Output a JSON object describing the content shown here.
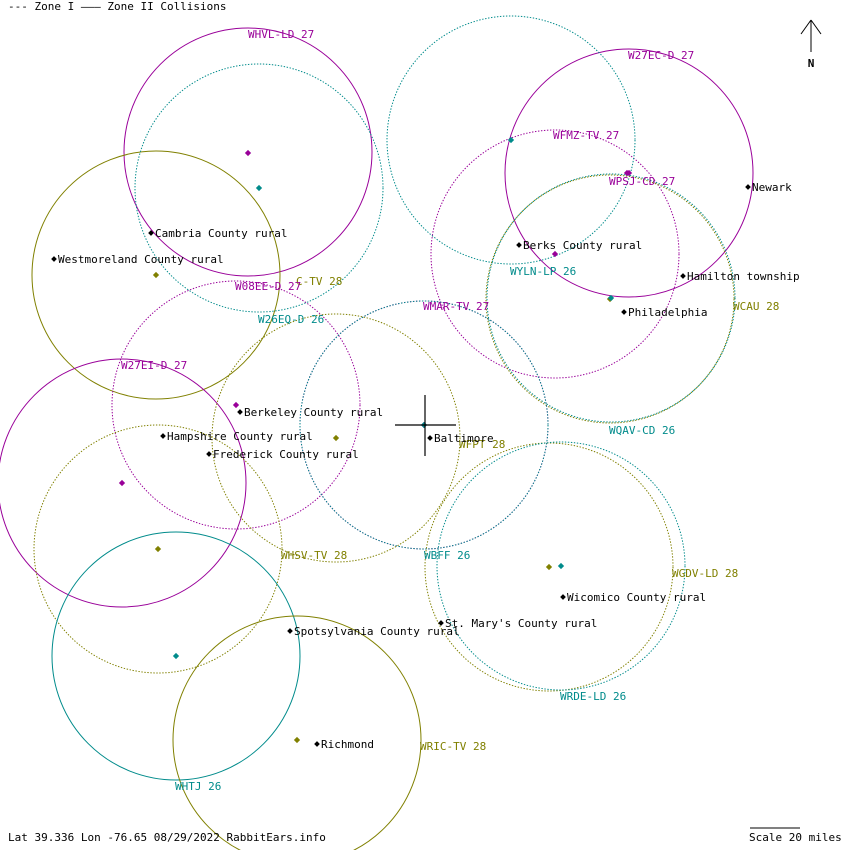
{
  "legend": {
    "text": "--- Zone I  ——— Zone II Collisions"
  },
  "compass": {
    "label": "N"
  },
  "footer": {
    "status": "Lat 39.336 Lon -76.65 08/29/2022 RabbitEars.info",
    "scale": "Scale 20 miles"
  },
  "colors": {
    "purple": "#990099",
    "teal": "#008B8B",
    "olive": "#808000",
    "navy": "#000080",
    "darkgreen": "#006400",
    "black": "#000000"
  },
  "stations": [
    {
      "callsign": "WHVL-LD 27",
      "color": "purple",
      "style": "solid"
    },
    {
      "callsign": "W27EC-D 27",
      "color": "purple",
      "style": "solid"
    },
    {
      "callsign": "WFMZ-TV 27",
      "color": "purple",
      "style": "dotted"
    },
    {
      "callsign": "WPSJ-CD 27",
      "color": "purple",
      "style": "dotted"
    },
    {
      "callsign": "WYLN-LP 26",
      "color": "teal",
      "style": "dotted"
    },
    {
      "callsign": "WCAU 28",
      "color": "olive",
      "style": "dotted"
    },
    {
      "callsign": "C-TV 28",
      "color": "olive",
      "style": "solid"
    },
    {
      "callsign": "W08EE-D 27",
      "color": "purple",
      "style": "dotted"
    },
    {
      "callsign": "W26EQ-D 26",
      "color": "teal",
      "style": "dotted"
    },
    {
      "callsign": "WMAR-TV 27",
      "color": "purple",
      "style": "dotted"
    },
    {
      "callsign": "W27EI-D 27",
      "color": "purple",
      "style": "solid"
    },
    {
      "callsign": "WQAV-CD 26",
      "color": "teal",
      "style": "dotted"
    },
    {
      "callsign": "WFPT 28",
      "color": "olive",
      "style": "dotted"
    },
    {
      "callsign": "WHSV-TV 28",
      "color": "olive",
      "style": "dotted"
    },
    {
      "callsign": "WBFF 26",
      "color": "teal",
      "style": "dotted"
    },
    {
      "callsign": "WGDV-LD 28",
      "color": "olive",
      "style": "dotted"
    },
    {
      "callsign": "WRDE-LD 26",
      "color": "teal",
      "style": "dotted"
    },
    {
      "callsign": "WHTJ 26",
      "color": "teal",
      "style": "solid"
    },
    {
      "callsign": "WRIC-TV 28",
      "color": "olive",
      "style": "solid"
    }
  ],
  "places": [
    {
      "name": "Newark"
    },
    {
      "name": "Berks County rural"
    },
    {
      "name": "Hamilton township"
    },
    {
      "name": "Philadelphia"
    },
    {
      "name": "Cambria County rural"
    },
    {
      "name": "Westmoreland County rural"
    },
    {
      "name": "Berkeley County rural"
    },
    {
      "name": "Hampshire County rural"
    },
    {
      "name": "Frederick County rural"
    },
    {
      "name": "Baltimore"
    },
    {
      "name": "Wicomico County rural"
    },
    {
      "name": "St. Mary's County rural"
    },
    {
      "name": "Spotsylvania County rural"
    },
    {
      "name": "Richmond"
    }
  ]
}
